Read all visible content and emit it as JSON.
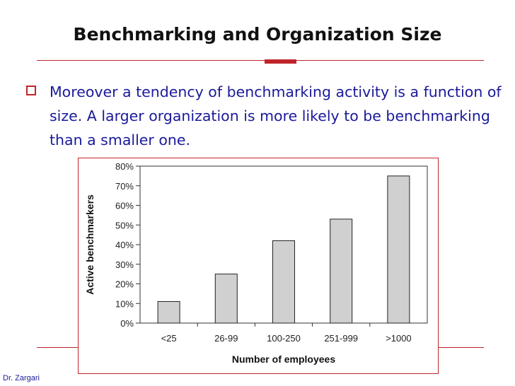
{
  "slide": {
    "title": "Benchmarking and Organization Size",
    "bullet": "Moreover a tendency of benchmarking activity is a function of size. A larger organization is more likely to be benchmarking than a smaller one.",
    "footer": "Dr. Zargari",
    "accent_color": "#c0242b",
    "text_color": "#1a1a9a"
  },
  "chart_data": {
    "type": "bar",
    "categories": [
      "<25",
      "26-99",
      "100-250",
      "251-999",
      ">1000"
    ],
    "values": [
      11,
      25,
      42,
      53,
      75
    ],
    "xlabel": "Number of employees",
    "ylabel": "Active benchmarkers",
    "ylim": [
      0,
      80
    ],
    "yticks": [
      "0%",
      "10%",
      "20%",
      "30%",
      "40%",
      "50%",
      "60%",
      "70%",
      "80%"
    ],
    "grid": false,
    "bar_color": "#d0d0d0"
  }
}
